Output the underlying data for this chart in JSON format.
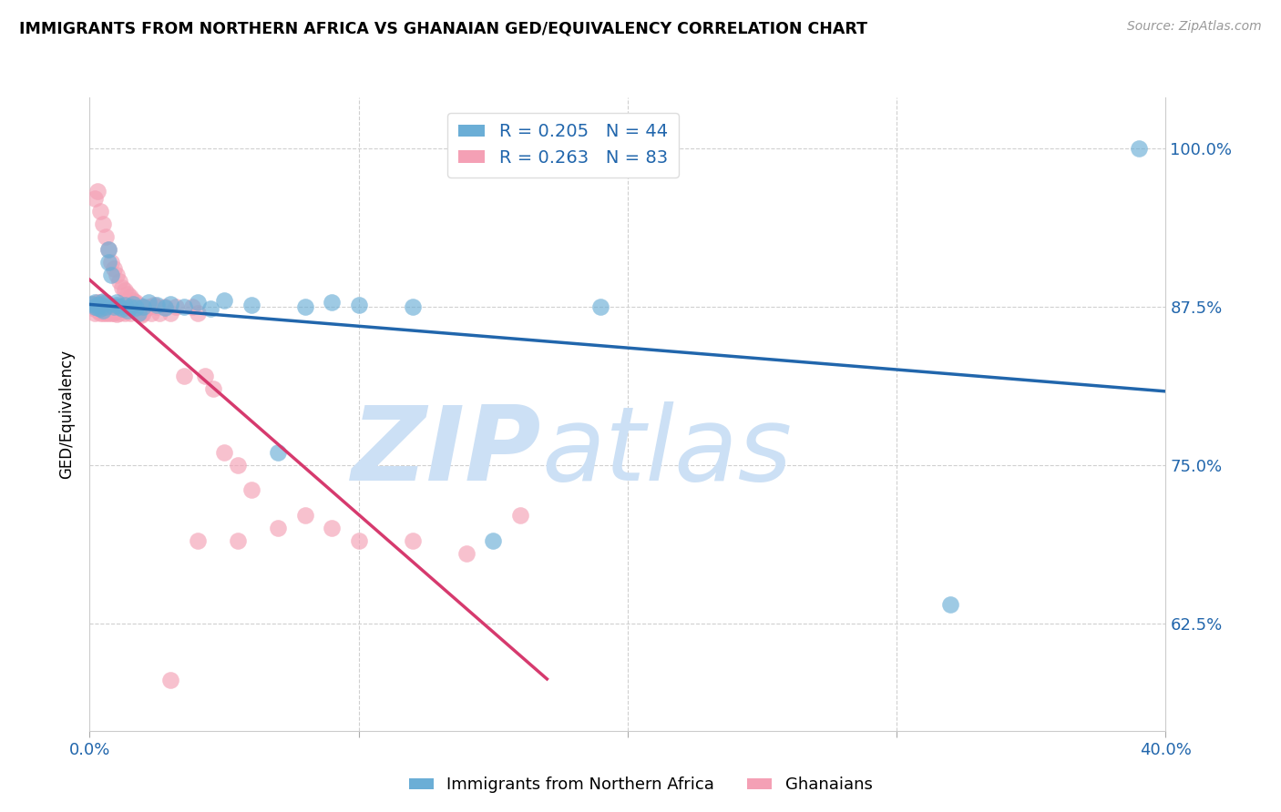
{
  "title": "IMMIGRANTS FROM NORTHERN AFRICA VS GHANAIAN GED/EQUIVALENCY CORRELATION CHART",
  "source": "Source: ZipAtlas.com",
  "ylabel": "GED/Equivalency",
  "yticks": [
    "100.0%",
    "87.5%",
    "75.0%",
    "62.5%"
  ],
  "ytick_vals": [
    1.0,
    0.875,
    0.75,
    0.625
  ],
  "xlim": [
    0.0,
    0.4
  ],
  "ylim": [
    0.54,
    1.04
  ],
  "legend_blue_label": "Immigrants from Northern Africa",
  "legend_pink_label": "Ghanaians",
  "R_blue": 0.205,
  "N_blue": 44,
  "R_pink": 0.263,
  "N_pink": 83,
  "blue_color": "#6baed6",
  "pink_color": "#f4a0b5",
  "blue_line_color": "#2166ac",
  "pink_line_color": "#d63a6e",
  "watermark_zip": "ZIP",
  "watermark_atlas": "atlas",
  "watermark_color": "#cce0f5",
  "blue_scatter_x": [
    0.001,
    0.002,
    0.002,
    0.003,
    0.003,
    0.004,
    0.004,
    0.005,
    0.005,
    0.006,
    0.006,
    0.007,
    0.007,
    0.008,
    0.009,
    0.01,
    0.01,
    0.011,
    0.012,
    0.013,
    0.014,
    0.015,
    0.016,
    0.017,
    0.018,
    0.02,
    0.022,
    0.025,
    0.028,
    0.03,
    0.035,
    0.04,
    0.045,
    0.05,
    0.06,
    0.07,
    0.08,
    0.09,
    0.1,
    0.12,
    0.15,
    0.19,
    0.32,
    0.39
  ],
  "blue_scatter_y": [
    0.877,
    0.875,
    0.878,
    0.874,
    0.876,
    0.873,
    0.876,
    0.872,
    0.879,
    0.875,
    0.878,
    0.92,
    0.91,
    0.9,
    0.875,
    0.878,
    0.876,
    0.875,
    0.873,
    0.876,
    0.872,
    0.875,
    0.877,
    0.874,
    0.87,
    0.875,
    0.878,
    0.876,
    0.874,
    0.877,
    0.875,
    0.878,
    0.873,
    0.88,
    0.876,
    0.76,
    0.875,
    0.878,
    0.876,
    0.875,
    0.69,
    0.875,
    0.64,
    1.0
  ],
  "pink_scatter_x": [
    0.001,
    0.001,
    0.002,
    0.002,
    0.002,
    0.003,
    0.003,
    0.003,
    0.003,
    0.004,
    0.004,
    0.004,
    0.004,
    0.005,
    0.005,
    0.005,
    0.005,
    0.006,
    0.006,
    0.006,
    0.007,
    0.007,
    0.007,
    0.007,
    0.008,
    0.008,
    0.008,
    0.009,
    0.009,
    0.009,
    0.01,
    0.01,
    0.01,
    0.01,
    0.011,
    0.011,
    0.011,
    0.012,
    0.012,
    0.013,
    0.013,
    0.013,
    0.014,
    0.014,
    0.015,
    0.015,
    0.015,
    0.016,
    0.016,
    0.017,
    0.018,
    0.018,
    0.019,
    0.019,
    0.02,
    0.02,
    0.021,
    0.022,
    0.023,
    0.024,
    0.025,
    0.026,
    0.028,
    0.03,
    0.032,
    0.035,
    0.038,
    0.04,
    0.043,
    0.046,
    0.05,
    0.055,
    0.06,
    0.07,
    0.08,
    0.09,
    0.1,
    0.12,
    0.14,
    0.16,
    0.03,
    0.04,
    0.055
  ],
  "pink_scatter_y": [
    0.877,
    0.874,
    0.96,
    0.87,
    0.875,
    0.966,
    0.878,
    0.872,
    0.876,
    0.87,
    0.95,
    0.875,
    0.878,
    0.94,
    0.875,
    0.87,
    0.877,
    0.93,
    0.875,
    0.87,
    0.92,
    0.875,
    0.87,
    0.876,
    0.91,
    0.875,
    0.87,
    0.905,
    0.875,
    0.87,
    0.9,
    0.875,
    0.871,
    0.869,
    0.895,
    0.875,
    0.87,
    0.89,
    0.875,
    0.888,
    0.875,
    0.87,
    0.885,
    0.875,
    0.883,
    0.875,
    0.87,
    0.88,
    0.875,
    0.878,
    0.876,
    0.87,
    0.875,
    0.868,
    0.875,
    0.87,
    0.873,
    0.875,
    0.87,
    0.876,
    0.875,
    0.87,
    0.875,
    0.87,
    0.875,
    0.82,
    0.875,
    0.87,
    0.82,
    0.81,
    0.76,
    0.75,
    0.73,
    0.7,
    0.71,
    0.7,
    0.69,
    0.69,
    0.68,
    0.71,
    0.58,
    0.69,
    0.69
  ]
}
